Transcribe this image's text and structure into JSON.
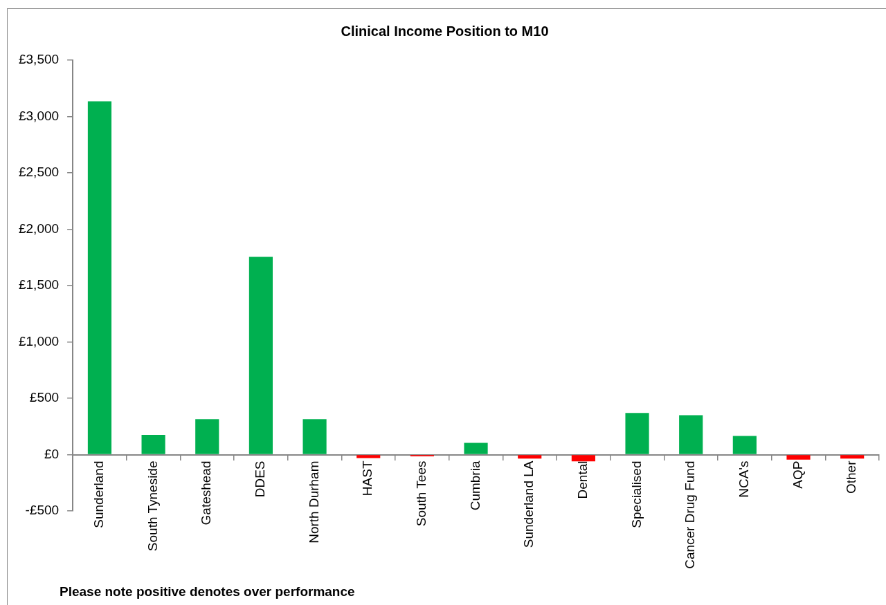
{
  "chart_data": {
    "type": "bar",
    "title": "Clinical Income Position to M10",
    "categories": [
      "Sunderland",
      "South Tyneside",
      "Gateshead",
      "DDES",
      "North Durham",
      "HAST",
      "South Tees",
      "Cumbria",
      "Sunderland LA",
      "Dental",
      "Specialised",
      "Cancer Drug Fund",
      "NCA's",
      "AQP",
      "Other"
    ],
    "values": [
      3135,
      175,
      315,
      1755,
      315,
      -30,
      -15,
      105,
      -35,
      -60,
      370,
      350,
      165,
      -45,
      -35
    ],
    "colors": [
      "#00b050",
      "#00b050",
      "#00b050",
      "#00b050",
      "#00b050",
      "#ff0000",
      "#ff0000",
      "#00b050",
      "#ff0000",
      "#ff0000",
      "#00b050",
      "#00b050",
      "#00b050",
      "#ff0000",
      "#ff0000"
    ],
    "ylim": [
      -500,
      3500
    ],
    "yticks": [
      {
        "value": -500,
        "label": "-£500"
      },
      {
        "value": 0,
        "label": "£0"
      },
      {
        "value": 500,
        "label": "£500"
      },
      {
        "value": 1000,
        "label": "£1,000"
      },
      {
        "value": 1500,
        "label": "£1,500"
      },
      {
        "value": 2000,
        "label": "£2,000"
      },
      {
        "value": 2500,
        "label": "£2,500"
      },
      {
        "value": 3000,
        "label": "£3,000"
      },
      {
        "value": 3500,
        "label": "£3,500"
      }
    ],
    "annotations": [
      "Please note positive denotes over performance"
    ]
  }
}
